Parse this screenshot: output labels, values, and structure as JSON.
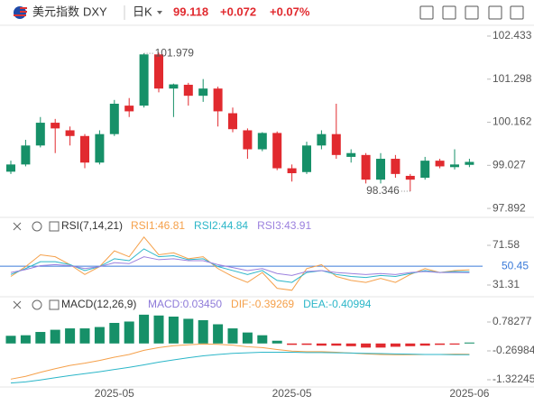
{
  "header": {
    "name": "美元指数",
    "symbol": "DXY",
    "period": "日K",
    "price": 99.118,
    "change": "+0.072",
    "change_pct": "+0.07%"
  },
  "chart_data": [
    {
      "type": "candlestick",
      "categories": [
        null,
        null,
        null,
        null,
        null,
        null,
        null,
        "2025-05",
        null,
        null,
        null,
        null,
        null,
        null,
        null,
        null,
        null,
        null,
        null,
        "2025-05",
        null,
        null,
        null,
        null,
        null,
        null,
        null,
        null,
        null,
        null,
        null,
        "2025-06"
      ],
      "open": [
        98.86,
        99.05,
        99.55,
        100.15,
        99.95,
        99.8,
        99.1,
        99.85,
        100.6,
        100.6,
        101.95,
        101.05,
        101.15,
        100.86,
        101.05,
        100.4,
        99.95,
        99.45,
        99.88,
        98.95,
        98.85,
        99.55,
        99.85,
        99.25,
        99.3,
        98.65,
        99.2,
        98.75,
        98.7,
        99.15,
        98.98,
        99.04
      ],
      "high": [
        99.15,
        99.7,
        100.3,
        100.25,
        100.05,
        99.85,
        99.95,
        100.75,
        100.8,
        101.979,
        102.0,
        101.18,
        101.2,
        101.3,
        101.1,
        100.55,
        100.0,
        99.9,
        99.92,
        99.05,
        99.65,
        99.95,
        100.65,
        99.45,
        99.35,
        99.35,
        99.3,
        98.8,
        99.25,
        99.2,
        99.45,
        99.2
      ],
      "low": [
        98.8,
        99.0,
        99.5,
        99.35,
        99.55,
        98.95,
        99.05,
        99.8,
        100.3,
        100.55,
        100.95,
        100.3,
        100.6,
        100.7,
        100.05,
        99.9,
        99.2,
        99.4,
        98.9,
        98.6,
        98.8,
        99.45,
        99.2,
        99.1,
        98.55,
        98.55,
        98.7,
        98.346,
        98.65,
        98.95,
        98.92,
        98.98
      ],
      "close": [
        99.05,
        99.55,
        100.15,
        100.0,
        99.8,
        99.1,
        99.85,
        100.65,
        100.45,
        101.95,
        101.05,
        101.16,
        100.86,
        101.05,
        100.45,
        99.98,
        99.45,
        99.88,
        98.95,
        98.82,
        99.55,
        99.85,
        99.3,
        99.35,
        98.65,
        99.2,
        98.8,
        98.65,
        99.15,
        99.0,
        99.05,
        99.118
      ],
      "up_color": "#169068",
      "down_color": "#e12a2f",
      "ylim": [
        97.68,
        102.67
      ],
      "yticks": [
        97.892,
        99.027,
        100.162,
        101.298,
        102.433
      ],
      "annotations": [
        {
          "text": "101.979",
          "index": 9,
          "at": "high"
        },
        {
          "text": "98.346",
          "index": 27,
          "at": "low"
        }
      ]
    },
    {
      "type": "line",
      "title": "RSI(7,14,21)",
      "series": [
        {
          "name": "RSI1:46.81",
          "color": "#f5a04a",
          "values": [
            40,
            50,
            62,
            60,
            52,
            42,
            50,
            66,
            60,
            80,
            62,
            64,
            58,
            60,
            48,
            40,
            34,
            44,
            28,
            26,
            48,
            52,
            40,
            36,
            34,
            38,
            34,
            42,
            48,
            44,
            46,
            46.81
          ]
        },
        {
          "name": "RSI2:44.84",
          "color": "#2bb6c8",
          "values": [
            42,
            48,
            55,
            55,
            52,
            46,
            50,
            58,
            56,
            68,
            60,
            61,
            57,
            58,
            50,
            46,
            42,
            46,
            36,
            34,
            44,
            46,
            42,
            40,
            39,
            41,
            40,
            43,
            46,
            44,
            45,
            44.84
          ]
        },
        {
          "name": "RSI3:43.91",
          "color": "#9b80de",
          "values": [
            44,
            47,
            51,
            52,
            51,
            48,
            50,
            54,
            53,
            60,
            57,
            58,
            56,
            56,
            52,
            49,
            46,
            48,
            43,
            41,
            45,
            46,
            44,
            43,
            42,
            43,
            42,
            44,
            45,
            44,
            44,
            43.91
          ]
        }
      ],
      "ylim": [
        22.16,
        80.73
      ],
      "yticks": [
        31.31,
        71.58
      ],
      "reference": 50.45,
      "reference_color": "#3b7bd9"
    },
    {
      "type": "macd",
      "title": "MACD(12,26,9)",
      "bars": {
        "name": "MACD:0.03450",
        "color": "#8e7ad9",
        "up_color": "#169068",
        "down_color": "#e12a2f",
        "values": [
          0.28,
          0.3,
          0.42,
          0.5,
          0.55,
          0.55,
          0.6,
          0.75,
          0.8,
          1.05,
          1.02,
          0.98,
          0.9,
          0.85,
          0.7,
          0.55,
          0.4,
          0.3,
          0.1,
          -0.05,
          -0.05,
          -0.08,
          -0.08,
          -0.1,
          -0.15,
          -0.15,
          -0.12,
          -0.1,
          -0.08,
          -0.05,
          -0.04,
          0.0345
        ]
      },
      "series": [
        {
          "name": "DIF:-0.39269",
          "color": "#f5a04a",
          "values": [
            -1.3,
            -1.2,
            -1.05,
            -0.92,
            -0.8,
            -0.72,
            -0.62,
            -0.5,
            -0.4,
            -0.25,
            -0.15,
            -0.08,
            -0.05,
            -0.02,
            -0.03,
            -0.06,
            -0.12,
            -0.15,
            -0.22,
            -0.28,
            -0.3,
            -0.3,
            -0.32,
            -0.35,
            -0.38,
            -0.4,
            -0.41,
            -0.41,
            -0.4,
            -0.4,
            -0.39,
            -0.39269
          ]
        },
        {
          "name": "DEA:-0.40994",
          "color": "#2bb6c8",
          "values": [
            -1.44,
            -1.4,
            -1.33,
            -1.25,
            -1.17,
            -1.1,
            -1.03,
            -0.95,
            -0.87,
            -0.78,
            -0.68,
            -0.6,
            -0.52,
            -0.45,
            -0.4,
            -0.36,
            -0.34,
            -0.32,
            -0.32,
            -0.32,
            -0.33,
            -0.33,
            -0.34,
            -0.35,
            -0.36,
            -0.37,
            -0.38,
            -0.39,
            -0.4,
            -0.4,
            -0.41,
            -0.40994
          ]
        }
      ],
      "ylim": [
        -1.553,
        1.605
      ],
      "yticks": [
        -1.32245,
        -0.26984,
        0.78277
      ]
    }
  ]
}
